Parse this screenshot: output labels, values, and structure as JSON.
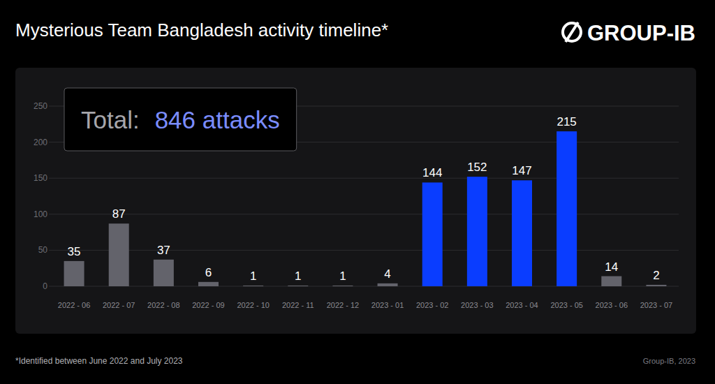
{
  "chart_data": {
    "type": "bar",
    "title": "Mysterious Team Bangladesh activity timeline*",
    "categories": [
      "2022 - 06",
      "2022 - 07",
      "2022 - 08",
      "2022 - 09",
      "2022 - 10",
      "2022 - 11",
      "2022 - 12",
      "2023 - 01",
      "2023 - 02",
      "2023 - 03",
      "2023 - 04",
      "2023 - 05",
      "2023 - 06",
      "2023 - 07"
    ],
    "values": [
      35,
      87,
      37,
      6,
      1,
      1,
      1,
      4,
      144,
      152,
      147,
      215,
      14,
      2
    ],
    "colors": [
      "#63636b",
      "#63636b",
      "#63636b",
      "#63636b",
      "#63636b",
      "#63636b",
      "#63636b",
      "#63636b",
      "#0a3dff",
      "#0a3dff",
      "#0a3dff",
      "#0a3dff",
      "#63636b",
      "#63636b"
    ],
    "ylim": [
      0,
      250
    ],
    "yticks": [
      0,
      50,
      100,
      150,
      200,
      250
    ],
    "grid": true,
    "data_labels": true,
    "annotations": [
      {
        "label": "Total:",
        "text": "846 attacks"
      }
    ]
  },
  "page": {
    "logo": "GROUP-IB",
    "footnote": "*Identified between June 2022 and July 2023",
    "source": "Group-IB, 2023"
  }
}
